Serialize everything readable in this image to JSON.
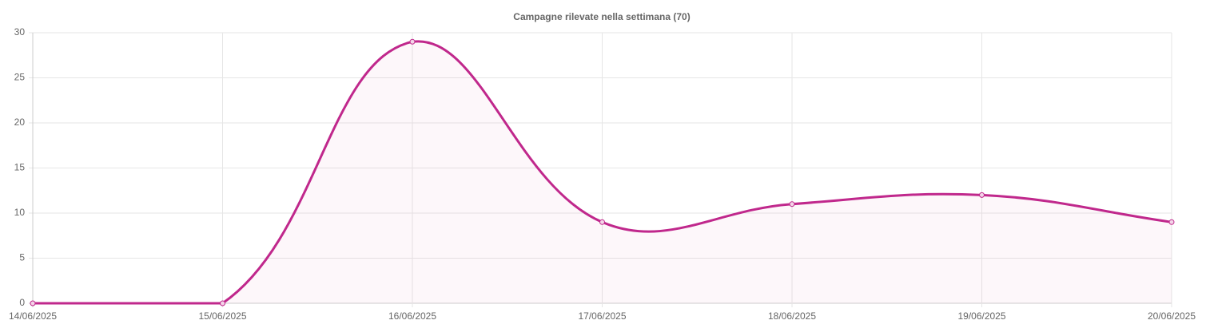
{
  "chart_data": {
    "type": "line",
    "title": "Campagne rilevate nella settimana (70)",
    "categories": [
      "14/06/2025",
      "15/06/2025",
      "16/06/2025",
      "17/06/2025",
      "18/06/2025",
      "19/06/2025",
      "20/06/2025"
    ],
    "series": [
      {
        "color": "#c0288c",
        "values": [
          0,
          0,
          29,
          9,
          11,
          12,
          9
        ]
      }
    ],
    "ylim": [
      0,
      30
    ],
    "yticks": [
      0,
      5,
      10,
      15,
      20,
      25,
      30
    ],
    "grid": true,
    "fill": true,
    "smooth": true
  }
}
